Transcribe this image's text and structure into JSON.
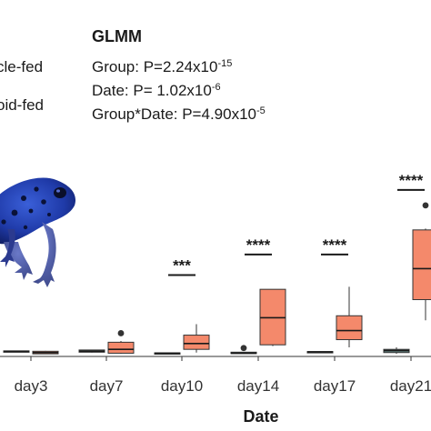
{
  "legend": [
    {
      "label": "cle-fed",
      "color": "#6e8f8c"
    },
    {
      "label": "oid-fed",
      "color": "#f4896b"
    }
  ],
  "glmm": {
    "title": "GLMM",
    "stats": [
      {
        "base": "Group: P=2.24x10",
        "exp": "-15"
      },
      {
        "base": "Date: P= 1.02x10",
        "exp": "-6"
      },
      {
        "base": "Group*Date: P=4.90x10",
        "exp": "-5"
      }
    ]
  },
  "chart_data": {
    "type": "box",
    "xlabel": "Date",
    "categories": [
      "day3",
      "day7",
      "day10",
      "day14",
      "day17",
      "day21"
    ],
    "ylim": [
      0,
      120
    ],
    "grid": false,
    "series": [
      {
        "color": "#6e8f8c",
        "boxes": [
          {
            "min": 3.5,
            "q1": 3.8,
            "median": 4.0,
            "q3": 4.3,
            "max": 4.6
          },
          {
            "min": 3.0,
            "q1": 3.3,
            "median": 4.0,
            "q3": 5.0,
            "max": 5.3
          },
          {
            "min": 2.0,
            "q1": 2.2,
            "median": 2.5,
            "q3": 2.8,
            "max": 3.0
          },
          {
            "min": 2.0,
            "q1": 2.2,
            "median": 2.5,
            "q3": 3.3,
            "max": 3.5,
            "outliers": [
              6.5
            ]
          },
          {
            "min": 3.0,
            "q1": 3.2,
            "median": 3.5,
            "q3": 3.8,
            "max": 4.0
          },
          {
            "min": 2.0,
            "q1": 3.0,
            "median": 4.5,
            "q3": 5.5,
            "max": 7.0
          }
        ]
      },
      {
        "color": "#f4896b",
        "boxes": [
          {
            "min": 1.8,
            "q1": 2.0,
            "median": 3.0,
            "q3": 4.0,
            "max": 4.3
          },
          {
            "min": 2.0,
            "q1": 2.5,
            "median": 5.5,
            "q3": 11.0,
            "max": 12.0,
            "outliers": [
              18.0
            ]
          },
          {
            "min": 3.0,
            "q1": 5.5,
            "median": 10.0,
            "q3": 16.5,
            "max": 25.0
          },
          {
            "min": 8.0,
            "q1": 9.0,
            "median": 30.0,
            "q3": 52.0,
            "max": 52.0
          },
          {
            "min": 7.0,
            "q1": 13.0,
            "median": 20.0,
            "q3": 31.5,
            "max": 54.0
          },
          {
            "min": 28.0,
            "q1": 44.0,
            "median": 68.0,
            "q3": 98.0,
            "max": 99.0,
            "outliers": [
              117.0
            ]
          }
        ]
      }
    ],
    "annotations": [
      {
        "category": "day10",
        "label": "***",
        "y": 63
      },
      {
        "category": "day14",
        "label": "****",
        "y": 79
      },
      {
        "category": "day17",
        "label": "****",
        "y": 79
      },
      {
        "category": "day21",
        "label": "****",
        "y": 129
      }
    ]
  }
}
